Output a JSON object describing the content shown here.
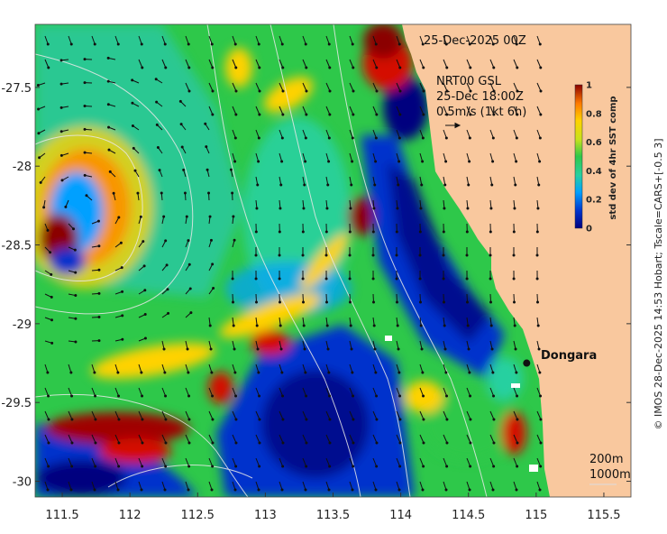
{
  "title_date": "25-Dec-2025 00Z",
  "overlay": {
    "line1": "NRT00 GSL",
    "line2": "25-Dec 18:00Z",
    "line3": "0.5m/s (1kt 6h)"
  },
  "location": {
    "name": "Dongara",
    "lon": 114.93,
    "lat": -29.25
  },
  "contour_legend": [
    "200m",
    "1000m"
  ],
  "colorbar": {
    "label": "std dev of 4hr SST comp",
    "min": 0,
    "max": 1,
    "tick_labels": [
      "1",
      "0.8",
      "0.6",
      "0.4",
      "0.2",
      "0"
    ]
  },
  "side_credit": "© IMOS 28-Dec-2025 14:53 Hobart; Tscale=CARS+[-0.5 3]",
  "axes": {
    "x_ticks": [
      "111.5",
      "112",
      "112.5",
      "113",
      "113.5",
      "114",
      "114.5",
      "115",
      "115.5"
    ],
    "y_ticks": [
      "-27.5",
      "-28",
      "-28.5",
      "-29",
      "-29.5",
      "-30"
    ],
    "x_range": [
      111.3,
      115.7
    ],
    "y_range": [
      -30.1,
      -27.1
    ]
  },
  "colors": {
    "land": "#f9c89e",
    "scale": [
      "#00007f",
      "#0033cc",
      "#00a0ff",
      "#27d0a0",
      "#2ec84a",
      "#c8e21c",
      "#ffd200",
      "#ff7a00",
      "#d41000",
      "#8b0000"
    ]
  }
}
